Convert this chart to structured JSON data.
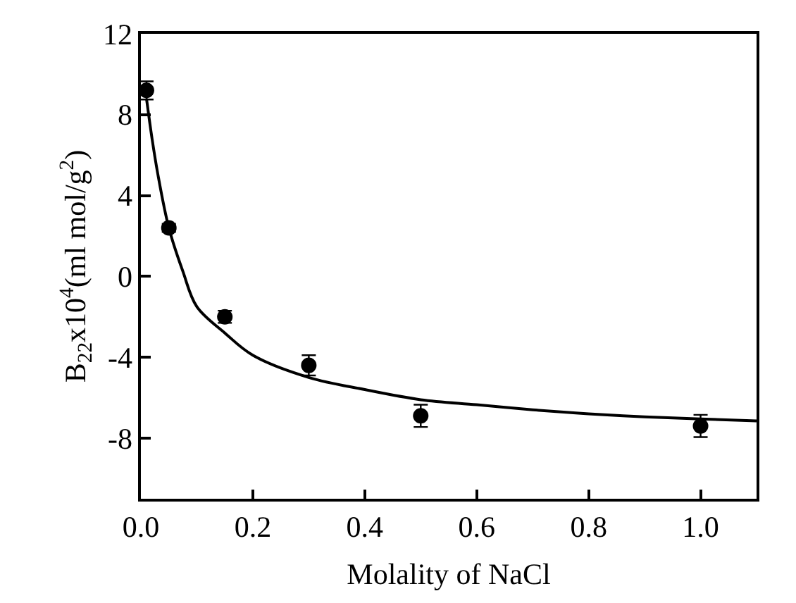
{
  "chart_data": {
    "type": "scatter",
    "xlabel": "Molality of NaCl",
    "ylabel": "B$_{22}$x10$^{4}$(ml mol/g$^{2}$)",
    "xlim": [
      0,
      1.1
    ],
    "xticks": [
      {
        "value": 0,
        "label": "0.0"
      },
      0.2,
      0.4,
      0.6,
      0.8,
      {
        "value": 1.0,
        "label": "1.0"
      }
    ],
    "ylim": [
      -11,
      12
    ],
    "yticks": [
      -8,
      -4,
      0,
      4,
      8,
      12
    ],
    "legend": false,
    "series": [
      {
        "color": "#000000",
        "marker": "circle",
        "x": [
          0.01,
          0.05,
          0.15,
          0.3,
          0.5,
          1.0
        ],
        "values": [
          9.2,
          2.4,
          -2.0,
          -4.4,
          -6.9,
          -7.4
        ],
        "errors": [
          0.45,
          0.2,
          0.3,
          0.5,
          0.55,
          0.55
        ]
      },
      {
        "type": "line",
        "color": "#000000",
        "marker": "none",
        "line_style": "solid",
        "x": [
          0.01,
          0.02,
          0.03,
          0.05,
          0.075,
          0.1,
          0.15,
          0.2,
          0.3,
          0.4,
          0.5,
          0.6,
          0.7,
          0.8,
          0.9,
          1.0,
          1.1
        ],
        "values": [
          8.8,
          6.8,
          5.1,
          2.4,
          0.25,
          -1.5,
          -2.8,
          -3.9,
          -5.0,
          -5.6,
          -6.1,
          -6.35,
          -6.6,
          -6.8,
          -6.95,
          -7.05,
          -7.15
        ]
      }
    ]
  }
}
